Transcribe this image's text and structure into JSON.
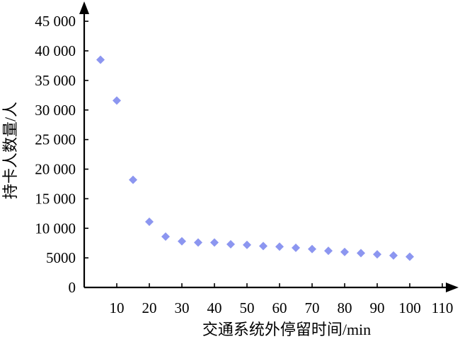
{
  "chart_data": {
    "type": "scatter",
    "title": "",
    "xlabel": "交通系统外停留时间/min",
    "ylabel": "持卡人数量/人",
    "xlim": [
      0,
      110
    ],
    "ylim": [
      0,
      45000
    ],
    "x_ticks": [
      10,
      20,
      30,
      40,
      50,
      60,
      70,
      80,
      90,
      100,
      110
    ],
    "x_tick_labels": [
      "10",
      "20",
      "30",
      "40",
      "50",
      "60",
      "70",
      "80",
      "90",
      "100",
      "110"
    ],
    "y_ticks": [
      0,
      5000,
      10000,
      15000,
      20000,
      25000,
      30000,
      35000,
      40000,
      45000
    ],
    "y_tick_labels": [
      "0",
      "5000",
      "10 000",
      "15 000",
      "20 000",
      "25 000",
      "30 000",
      "35 000",
      "40 000",
      "45 000"
    ],
    "grid": false,
    "marker": "diamond",
    "marker_color": "#8c96f0",
    "series": [
      {
        "x": [
          5,
          10,
          15,
          20,
          25,
          30,
          35,
          40,
          45,
          50,
          55,
          60,
          65,
          70,
          75,
          80,
          85,
          90,
          95,
          100
        ],
        "y": [
          38500,
          31600,
          18200,
          11100,
          8600,
          7800,
          7600,
          7600,
          7300,
          7200,
          7000,
          6900,
          6700,
          6500,
          6200,
          6000,
          5800,
          5600,
          5400,
          5200
        ]
      }
    ]
  }
}
